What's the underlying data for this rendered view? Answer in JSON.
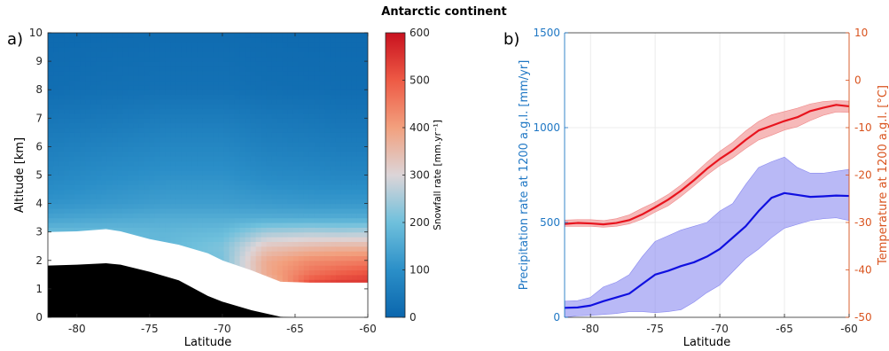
{
  "figure": {
    "title": "Antarctic continent"
  },
  "panel_a": {
    "label": "a)",
    "xlabel": "Latitude",
    "ylabel": "Altitude [km]",
    "colorbar_label": "Snowfall rate [mm.yr⁻¹]",
    "x_ticks": [
      "-80",
      "-75",
      "-70",
      "-65",
      "-60"
    ],
    "y_ticks": [
      "0",
      "1",
      "2",
      "3",
      "4",
      "5",
      "6",
      "7",
      "8",
      "9",
      "10"
    ],
    "colorbar_ticks": [
      "0",
      "100",
      "200",
      "300",
      "400",
      "500",
      "600"
    ]
  },
  "panel_b": {
    "label": "b)",
    "xlabel": "Latitude",
    "ylabel_left": "Precipitation rate at 1200 a.g.l. [mm/yr]",
    "ylabel_right": "Temperature at 1200 a.g.l. [°C]",
    "x_ticks": [
      "-80",
      "-75",
      "-70",
      "-65",
      "-60"
    ],
    "yleft_ticks": [
      "0",
      "500",
      "1000",
      "1500"
    ],
    "yright_ticks": [
      "10",
      "0",
      "-10",
      "-20",
      "-30",
      "-40",
      "-50"
    ]
  },
  "colors": {
    "precip_axis": "#1f77c4",
    "temp_axis": "#d9531e",
    "precip_line": "#1010e0",
    "precip_band": "#8a8af0",
    "temp_line": "#e8141e",
    "temp_band": "#f08a8a",
    "terrain": "#000000"
  },
  "chart_data": [
    {
      "type": "heatmap",
      "name": "snowfall-altitude-section",
      "x_range": [
        -82,
        -60
      ],
      "y_range": [
        0,
        10
      ],
      "value_range": [
        0,
        600
      ],
      "x_knots": [
        -82,
        -78,
        -74,
        -70,
        -67,
        -64,
        -62,
        -60
      ],
      "y_knots": [
        0,
        1,
        1.5,
        2,
        2.5,
        3,
        3.5,
        4,
        5,
        6,
        7,
        8,
        10
      ],
      "values": [
        [
          180,
          180,
          180,
          180,
          200,
          280,
          330,
          320
        ],
        [
          180,
          180,
          180,
          185,
          280,
          560,
          580,
          570
        ],
        [
          180,
          180,
          180,
          200,
          380,
          470,
          500,
          520
        ],
        [
          180,
          180,
          180,
          210,
          380,
          430,
          440,
          450
        ],
        [
          180,
          180,
          185,
          215,
          330,
          350,
          360,
          360
        ],
        [
          190,
          190,
          180,
          190,
          250,
          260,
          255,
          260
        ],
        [
          140,
          150,
          160,
          160,
          160,
          160,
          160,
          160
        ],
        [
          110,
          120,
          130,
          130,
          125,
          120,
          120,
          120
        ],
        [
          80,
          95,
          105,
          105,
          90,
          85,
          80,
          80
        ],
        [
          60,
          70,
          80,
          80,
          65,
          60,
          55,
          55
        ],
        [
          40,
          45,
          55,
          55,
          45,
          40,
          35,
          35
        ],
        [
          20,
          25,
          28,
          28,
          22,
          20,
          18,
          18
        ],
        [
          10,
          12,
          14,
          14,
          12,
          10,
          10,
          10
        ]
      ],
      "terrain_surface_km": {
        "lat": [
          -82,
          -80,
          -78,
          -77,
          -75,
          -73,
          -71,
          -70,
          -68,
          -66,
          -65
        ],
        "alt": [
          1.82,
          1.85,
          1.9,
          1.85,
          1.6,
          1.3,
          0.75,
          0.55,
          0.25,
          0.02,
          0
        ]
      },
      "no_data_top_km": {
        "lat": [
          -82,
          -80,
          -78,
          -77,
          -75,
          -73,
          -71,
          -70,
          -68,
          -66,
          -64,
          -60
        ],
        "alt": [
          3.0,
          3.02,
          3.1,
          3.02,
          2.75,
          2.55,
          2.25,
          2.0,
          1.65,
          1.25,
          1.22,
          1.22
        ]
      }
    },
    {
      "type": "line",
      "name": "precipitation-and-temperature",
      "x_range": [
        -82,
        -60
      ],
      "series": [
        {
          "axis": "left",
          "ylim": [
            0,
            1500
          ],
          "x": [
            -82,
            -81,
            -80,
            -79,
            -78,
            -77,
            -76,
            -75,
            -74,
            -73,
            -72,
            -71,
            -70,
            -69,
            -68,
            -67,
            -66,
            -65,
            -64,
            -63,
            -62,
            -61,
            -60
          ],
          "mean": [
            50,
            52,
            62,
            85,
            105,
            125,
            175,
            225,
            245,
            270,
            290,
            320,
            360,
            420,
            480,
            560,
            630,
            655,
            645,
            635,
            638,
            642,
            640
          ],
          "lower": [
            0,
            8,
            10,
            15,
            20,
            30,
            30,
            25,
            30,
            40,
            80,
            130,
            170,
            240,
            310,
            360,
            420,
            470,
            490,
            510,
            520,
            525,
            510
          ],
          "upper": [
            85,
            88,
            105,
            160,
            185,
            225,
            320,
            400,
            430,
            460,
            480,
            500,
            560,
            600,
            700,
            790,
            820,
            845,
            790,
            760,
            760,
            770,
            780
          ]
        },
        {
          "axis": "right",
          "ylim": [
            -50,
            10
          ],
          "x": [
            -82,
            -81,
            -80,
            -79,
            -78,
            -77,
            -76,
            -75,
            -74,
            -73,
            -72,
            -71,
            -70,
            -69,
            -68,
            -67,
            -66,
            -65,
            -64,
            -63,
            -62,
            -61,
            -60
          ],
          "mean": [
            -30.3,
            -30.1,
            -30.2,
            -30.4,
            -30.1,
            -29.5,
            -28.3,
            -26.8,
            -25.2,
            -23.3,
            -21.1,
            -18.7,
            -16.6,
            -14.8,
            -12.6,
            -10.6,
            -9.6,
            -8.6,
            -7.8,
            -6.5,
            -5.8,
            -5.2,
            -5.5
          ],
          "lower": [
            -30.8,
            -30.8,
            -30.8,
            -31.0,
            -30.8,
            -30.3,
            -29.3,
            -27.8,
            -26.5,
            -24.5,
            -22.3,
            -20.0,
            -18.0,
            -16.4,
            -14.4,
            -12.6,
            -11.6,
            -10.5,
            -9.8,
            -8.5,
            -7.4,
            -6.7,
            -6.8
          ],
          "upper": [
            -29.5,
            -29.4,
            -29.4,
            -29.6,
            -29.2,
            -28.4,
            -27.0,
            -25.7,
            -24.1,
            -22.1,
            -19.8,
            -17.3,
            -15.0,
            -13.1,
            -10.7,
            -8.7,
            -7.3,
            -6.6,
            -5.9,
            -5.0,
            -4.5,
            -4.3,
            -4.4
          ]
        }
      ]
    }
  ]
}
